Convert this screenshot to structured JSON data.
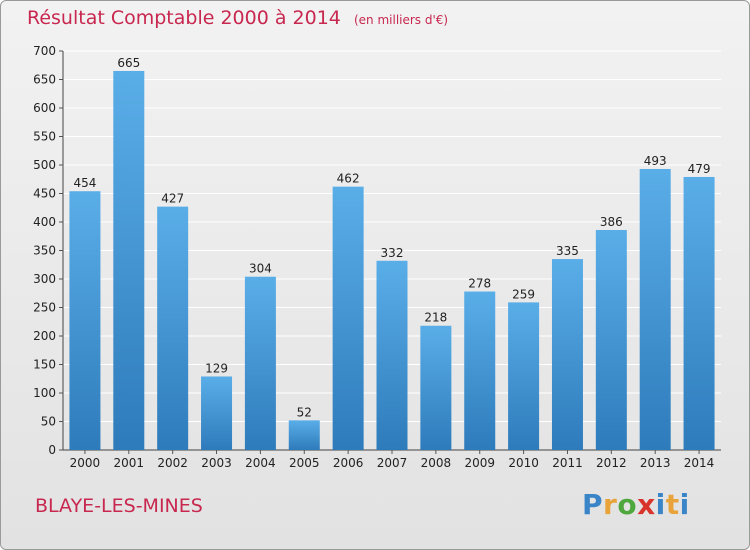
{
  "title": "Résultat Comptable 2000 à 2014",
  "subtitle": "(en milliers d'€)",
  "location": "BLAYE-LES-MINES",
  "logo": {
    "letters": [
      "P",
      "r",
      "o",
      "x",
      "i",
      "t",
      "i"
    ],
    "colors": [
      "#3a84c8",
      "#e8a33a",
      "#4fa83d",
      "#d9342b",
      "#3a84c8",
      "#e8a33a",
      "#3a84c8"
    ]
  },
  "colors": {
    "bar_top": "#5aaee8",
    "bar_bottom": "#2e7bbb",
    "accent": "#c8284f",
    "grid": "#ffffff"
  },
  "chart_data": {
    "type": "bar",
    "categories": [
      "2000",
      "2001",
      "2002",
      "2003",
      "2004",
      "2005",
      "2006",
      "2007",
      "2008",
      "2009",
      "2010",
      "2011",
      "2012",
      "2013",
      "2014"
    ],
    "values": [
      454,
      665,
      427,
      129,
      304,
      52,
      462,
      332,
      218,
      278,
      259,
      335,
      386,
      493,
      479
    ],
    "ylim": [
      0,
      700
    ],
    "yticks": [
      0,
      50,
      100,
      150,
      200,
      250,
      300,
      350,
      400,
      450,
      500,
      550,
      600,
      650,
      700
    ],
    "grid": true,
    "data_labels": true
  }
}
